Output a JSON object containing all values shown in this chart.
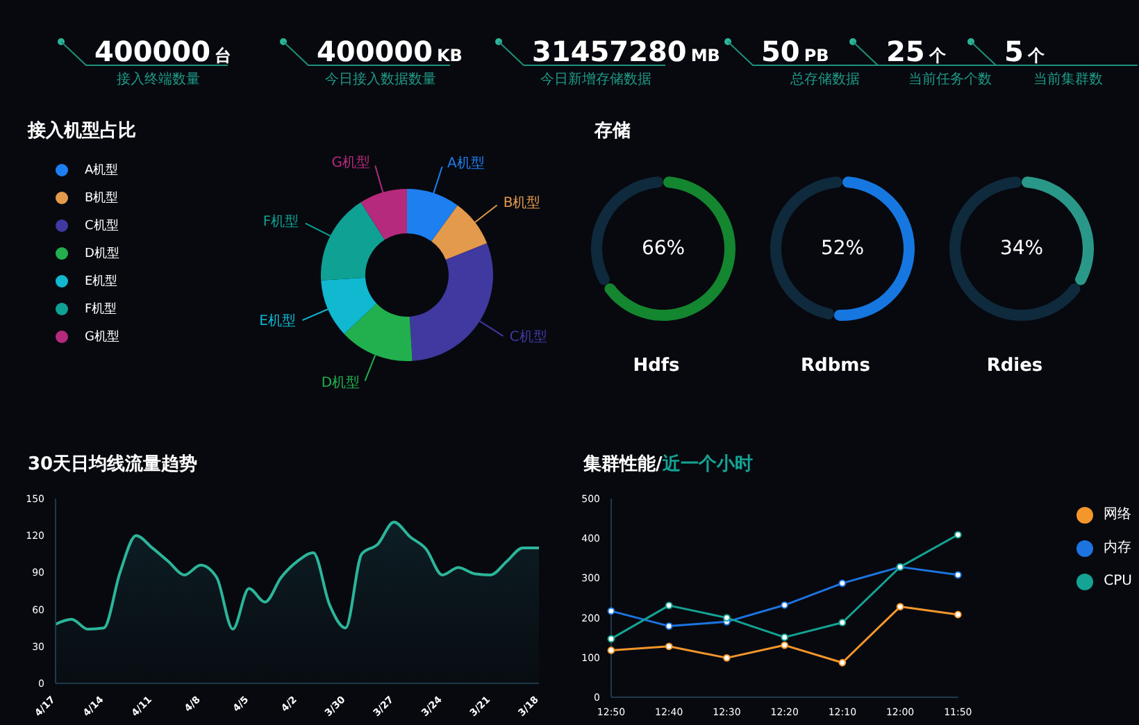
{
  "chart_data": [
    {
      "type": "other",
      "annotations": [
        "400000",
        "台",
        "接入终端数量",
        "400000",
        "KB",
        "今日接入数据数量",
        "31457280",
        "MB",
        "今日新增存储数据",
        "50",
        "PB",
        "总存储数据",
        "25",
        "个",
        "当前任务个数",
        "5",
        "个",
        "当前集群数"
      ]
    },
    {
      "type": "donut",
      "title": "接入机型占比",
      "categories": [
        "A机型",
        "B机型",
        "C机型",
        "D机型",
        "E机型",
        "F机型",
        "G机型"
      ],
      "values": [
        10,
        9,
        30,
        14,
        11,
        17,
        9
      ],
      "colors": [
        "#1e7ff0",
        "#e39a4c",
        "#4039a0",
        "#22b04f",
        "#10b8d0",
        "#0fa194",
        "#b52a7c"
      ],
      "legend": "left"
    },
    {
      "type": "donut",
      "title": "存储",
      "xlabel": "Hdfs",
      "categories": [
        null,
        null
      ],
      "values": [
        66,
        34
      ],
      "colors": [
        "#14862f",
        "#0f2a3c"
      ],
      "value_labels": [
        "66%",
        null
      ]
    },
    {
      "type": "donut",
      "xlabel": "Rdbms",
      "categories": [
        null,
        null
      ],
      "values": [
        52,
        48
      ],
      "colors": [
        "#1677e0",
        "#0f2a3c"
      ],
      "value_labels": [
        "52%",
        null
      ]
    },
    {
      "type": "donut",
      "xlabel": "Rdies",
      "categories": [
        null,
        null
      ],
      "values": [
        34,
        66
      ],
      "colors": [
        "#2a9888",
        "#0f2a3c"
      ],
      "value_labels": [
        "34%",
        null
      ]
    },
    {
      "type": "area",
      "title": "30天日均线流量趋势",
      "categories": [
        "4/17",
        null,
        null,
        "4/14",
        null,
        null,
        "4/11",
        null,
        null,
        "4/8",
        null,
        null,
        "4/5",
        null,
        null,
        "4/2",
        null,
        null,
        "3/30",
        null,
        null,
        "3/27",
        null,
        null,
        "3/24",
        null,
        null,
        "3/21",
        null,
        null,
        "3/18"
      ],
      "values": [
        48,
        52,
        44,
        45,
        90,
        120,
        110,
        99,
        88,
        96,
        86,
        44,
        77,
        66,
        86,
        99,
        106,
        64,
        45,
        105,
        113,
        131,
        119,
        109,
        88,
        94,
        89,
        88,
        99,
        110,
        110
      ],
      "color": "#2cb59a",
      "ylim": [
        0,
        150
      ],
      "yticks": [
        0,
        30,
        60,
        90,
        120,
        150
      ],
      "grid": false
    },
    {
      "type": "line",
      "title": "集群性能/",
      "subtitle": "近一个小时",
      "categories": [
        "12:50",
        "12:40",
        "12:30",
        "12:20",
        "12:10",
        "12:00",
        "11:50"
      ],
      "series": [
        {
          "name": "网络",
          "color": "#f5962a",
          "values": [
            118,
            128,
            99,
            131,
            87,
            228,
            208
          ]
        },
        {
          "name": "内存",
          "color": "#1d74e0",
          "values": [
            217,
            179,
            190,
            232,
            287,
            328,
            308
          ]
        },
        {
          "name": "CPU",
          "color": "#14a394",
          "values": [
            147,
            231,
            200,
            151,
            188,
            328,
            409
          ]
        }
      ],
      "ylim": [
        0,
        500
      ],
      "yticks": [
        0,
        100,
        200,
        300,
        400,
        500
      ],
      "grid": false,
      "legend": "top right",
      "marker": "circle"
    }
  ]
}
